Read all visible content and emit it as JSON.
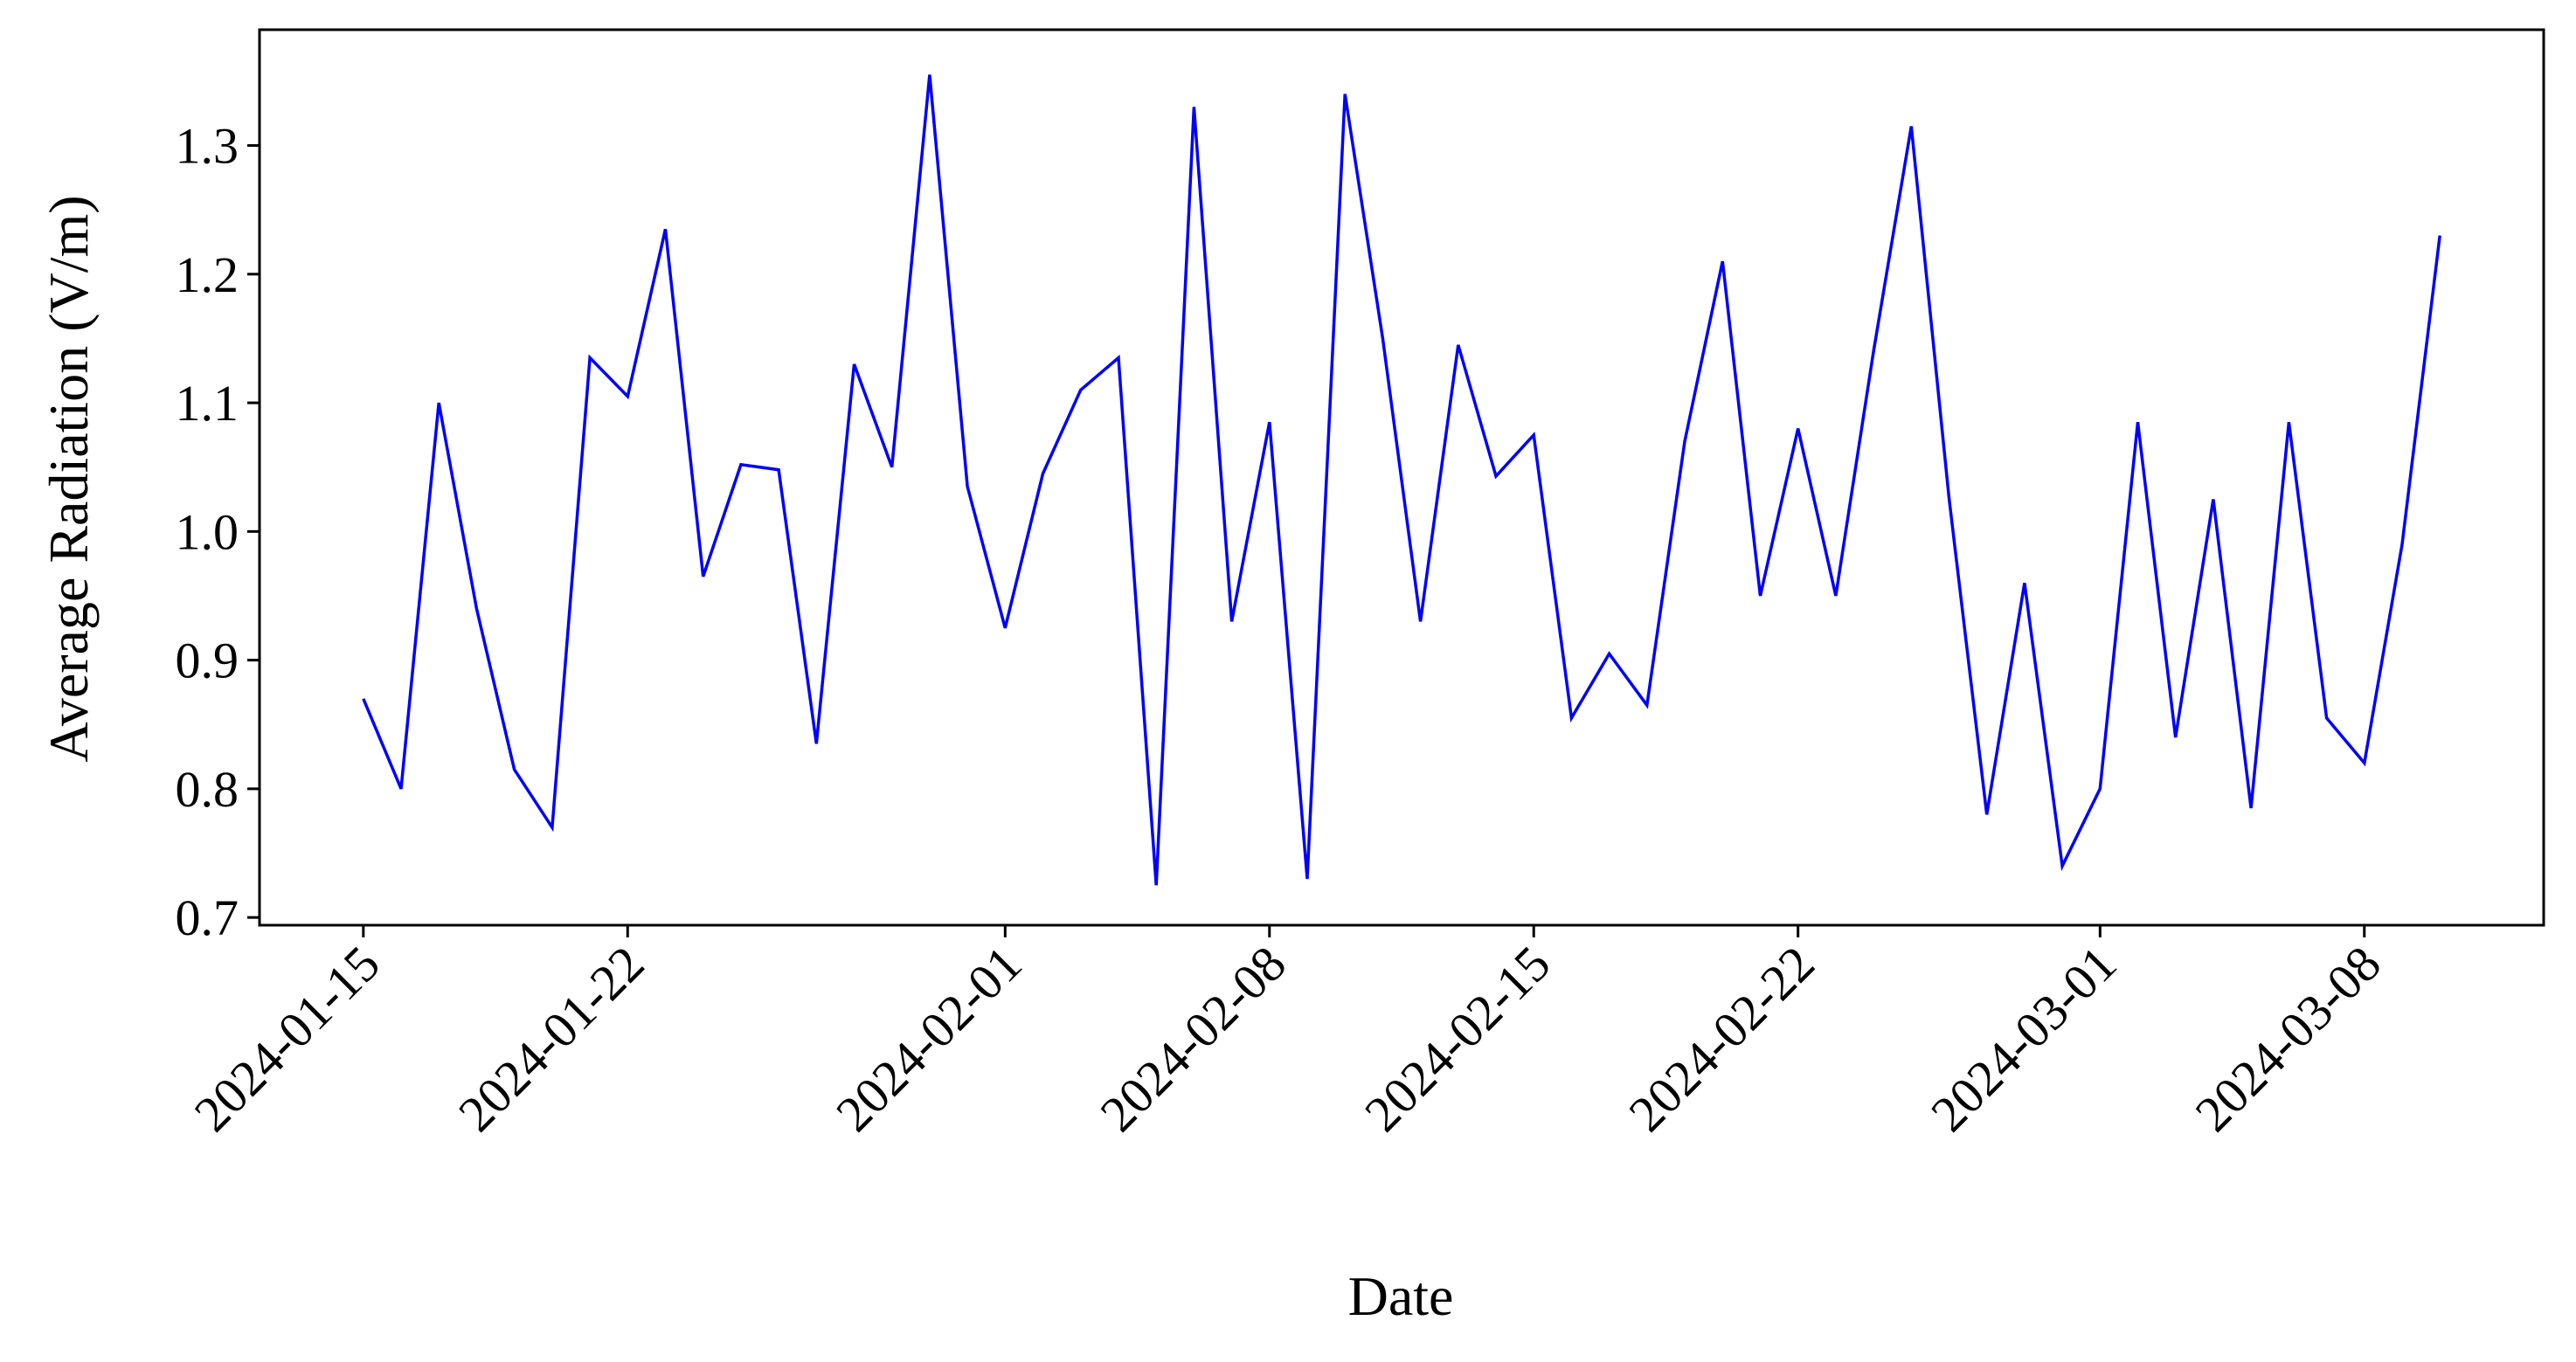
{
  "chart_data": {
    "type": "line",
    "title": "",
    "xlabel": "Date",
    "ylabel": "Average Radiation (V/m)",
    "x_start": "2024-01-15",
    "x_step": "1 day",
    "x": [
      "2024-01-15",
      "2024-01-16",
      "2024-01-17",
      "2024-01-18",
      "2024-01-19",
      "2024-01-20",
      "2024-01-21",
      "2024-01-22",
      "2024-01-23",
      "2024-01-24",
      "2024-01-25",
      "2024-01-26",
      "2024-01-27",
      "2024-01-28",
      "2024-01-29",
      "2024-01-30",
      "2024-01-31",
      "2024-02-01",
      "2024-02-02",
      "2024-02-03",
      "2024-02-04",
      "2024-02-05",
      "2024-02-06",
      "2024-02-07",
      "2024-02-08",
      "2024-02-09",
      "2024-02-10",
      "2024-02-11",
      "2024-02-12",
      "2024-02-13",
      "2024-02-14",
      "2024-02-15",
      "2024-02-16",
      "2024-02-17",
      "2024-02-18",
      "2024-02-19",
      "2024-02-20",
      "2024-02-21",
      "2024-02-22",
      "2024-02-23",
      "2024-02-24",
      "2024-02-25",
      "2024-02-26",
      "2024-02-27",
      "2024-02-28",
      "2024-02-29",
      "2024-03-01",
      "2024-03-02",
      "2024-03-03",
      "2024-03-04",
      "2024-03-05",
      "2024-03-06",
      "2024-03-07",
      "2024-03-08",
      "2024-03-09",
      "2024-03-10"
    ],
    "series": [
      {
        "color": "#0000ff",
        "values": [
          0.87,
          0.8,
          1.1,
          0.94,
          0.815,
          0.77,
          1.135,
          1.105,
          1.235,
          0.965,
          1.052,
          1.048,
          0.835,
          1.13,
          1.05,
          1.355,
          1.035,
          0.925,
          1.045,
          1.11,
          1.135,
          0.725,
          1.33,
          0.93,
          1.085,
          0.73,
          1.34,
          1.15,
          0.93,
          1.145,
          1.043,
          1.075,
          0.855,
          0.905,
          0.865,
          1.07,
          1.21,
          0.95,
          1.08,
          0.95,
          1.14,
          1.315,
          1.026,
          0.78,
          0.96,
          0.74,
          0.8,
          1.085,
          0.84,
          1.025,
          0.785,
          1.085,
          0.855,
          0.82,
          0.99,
          1.23
        ]
      }
    ],
    "xticks": [
      "2024-01-15",
      "2024-01-22",
      "2024-02-01",
      "2024-02-08",
      "2024-02-15",
      "2024-02-22",
      "2024-03-01",
      "2024-03-08"
    ],
    "yticks": [
      "0.7",
      "0.8",
      "0.9",
      "1.0",
      "1.1",
      "1.2",
      "1.3"
    ],
    "xlim": [
      "2024-01-12",
      "2024-03-13"
    ],
    "ylim": [
      0.694,
      1.39
    ],
    "grid": false,
    "legend": "none"
  }
}
